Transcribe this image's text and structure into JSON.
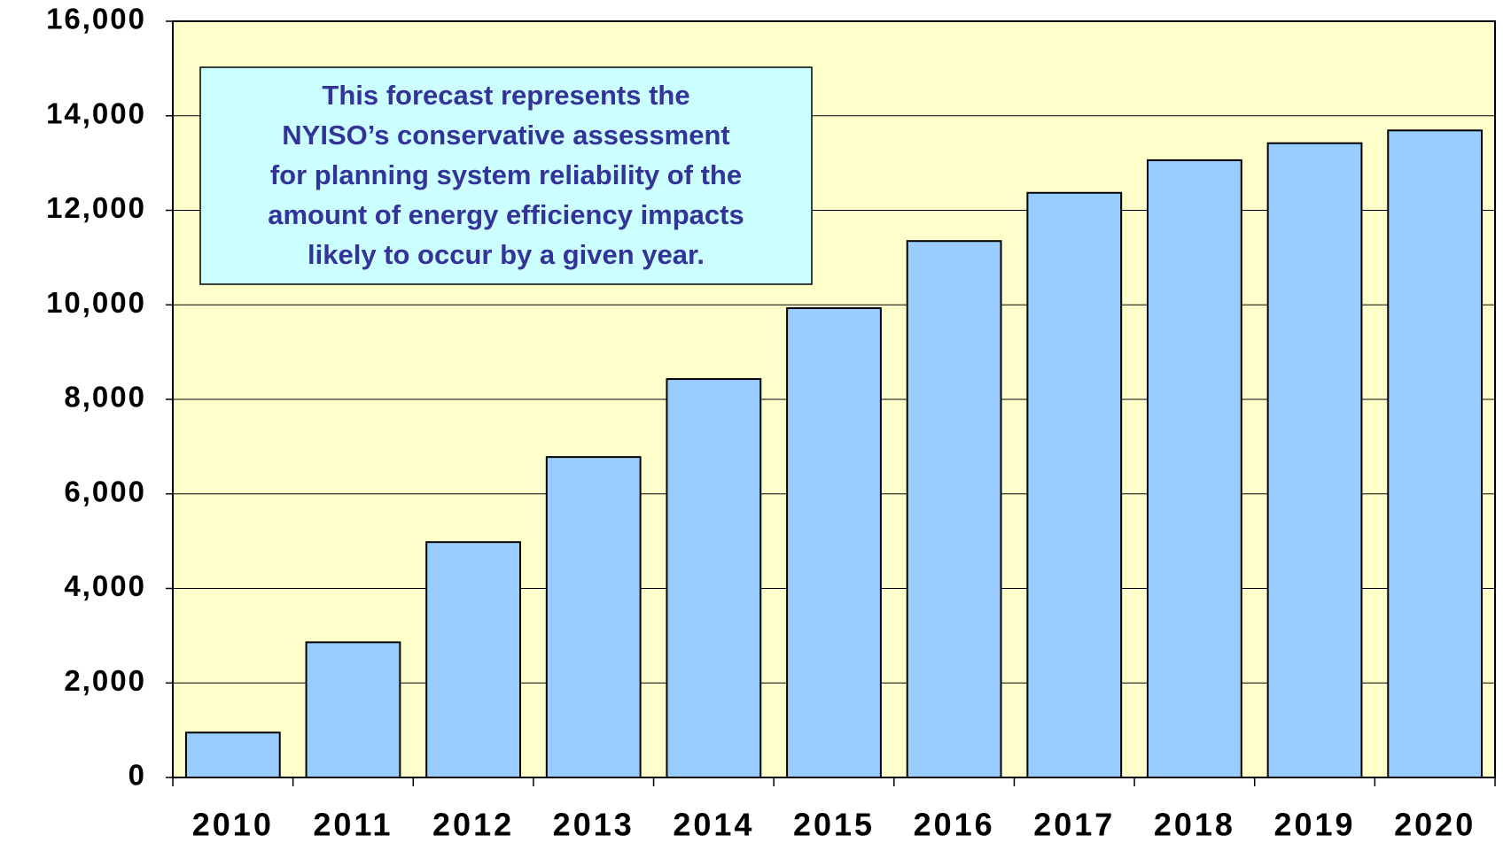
{
  "chart_data": {
    "type": "bar",
    "categories": [
      "2010",
      "2011",
      "2012",
      "2013",
      "2014",
      "2015",
      "2016",
      "2017",
      "2018",
      "2019",
      "2020"
    ],
    "values": [
      950,
      2860,
      4980,
      6780,
      8430,
      9930,
      11350,
      12370,
      13060,
      13420,
      13690
    ],
    "color": "#99ccff",
    "ylim": [
      0,
      16000
    ],
    "yticks": [
      0,
      {
        "value": 2000,
        "label": "2,000"
      },
      {
        "value": 4000,
        "label": "4,000"
      },
      {
        "value": 6000,
        "label": "6,000"
      },
      {
        "value": 8000,
        "label": "8,000"
      },
      {
        "value": 10000,
        "label": "10,000"
      },
      {
        "value": 12000,
        "label": "12,000"
      },
      {
        "value": 14000,
        "label": "14,000"
      },
      {
        "value": 16000,
        "label": "16,000"
      }
    ],
    "grid": true,
    "annotation": [
      "This forecast represents the",
      "NYISO’s conservative assessment",
      "for planning system reliability of the",
      "amount of energy efficiency impacts",
      "likely to occur by a given year."
    ]
  }
}
